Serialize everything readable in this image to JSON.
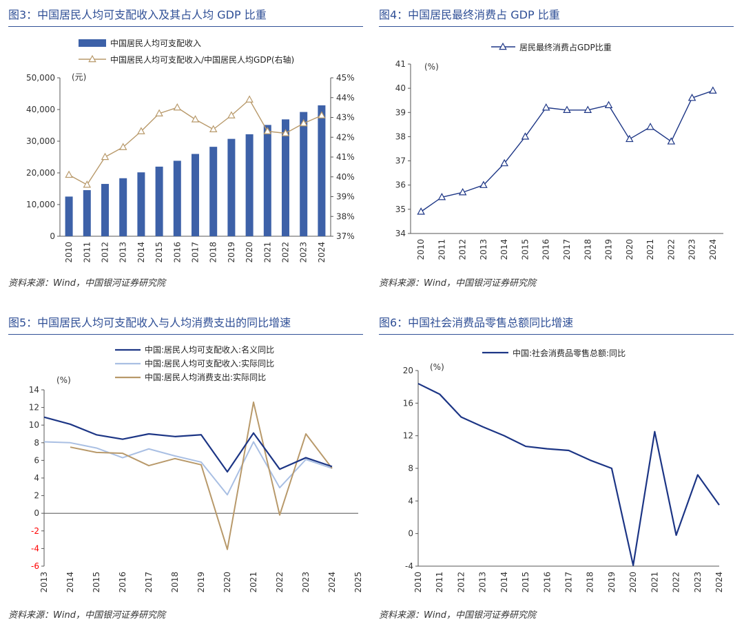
{
  "colors": {
    "title": "#2f4f96",
    "bar": "#3d61a8",
    "gold": "#b8996a",
    "navy": "#1c3585",
    "light_blue": "#a9bfe3",
    "negative_tick": "#ff0000"
  },
  "panels": {
    "fig3": {
      "title": "图3：中国居民人均可支配收入及其占人均 GDP 比重",
      "source": "资料来源：Wind，中国银河证券研究院"
    },
    "fig4": {
      "title": "图4：中国居民最终消费占 GDP 比重",
      "source": "资料来源：Wind，中国银河证券研究院"
    },
    "fig5": {
      "title": "图5：中国居民人均可支配收入与人均消费支出的同比增速",
      "source": "资料来源：Wind，中国银河证券研究院"
    },
    "fig6": {
      "title": "图6：中国社会消费品零售总额同比增速",
      "source": "资料来源：Wind，中国银河证券研究院"
    }
  },
  "chart_data": [
    {
      "id": "fig3",
      "type": "bar",
      "categories": [
        "2010",
        "2011",
        "2012",
        "2013",
        "2014",
        "2015",
        "2016",
        "2017",
        "2018",
        "2019",
        "2020",
        "2021",
        "2022",
        "2023",
        "2024"
      ],
      "series": [
        {
          "name": "中国居民人均可支配收入",
          "type": "bar",
          "axis": "left",
          "values": [
            12520,
            14551,
            16510,
            18311,
            20167,
            21966,
            23821,
            25974,
            28228,
            30733,
            32189,
            35128,
            36883,
            39218,
            41314
          ]
        },
        {
          "name": "中国居民人均可支配收入/中国居民人均GDP(右轴)",
          "type": "line",
          "axis": "right",
          "marker": "triangle",
          "values": [
            40.1,
            39.6,
            41.0,
            41.5,
            42.3,
            43.2,
            43.5,
            42.9,
            42.4,
            43.1,
            43.9,
            42.3,
            42.2,
            42.7,
            43.1
          ]
        }
      ],
      "yleft": {
        "range": [
          0,
          50000
        ],
        "ticks": [
          "0",
          "10,000",
          "20,000",
          "30,000",
          "40,000",
          "50,000"
        ],
        "unit_label": "(元)"
      },
      "yright": {
        "range": [
          37,
          45
        ],
        "ticks": [
          "37%",
          "38%",
          "39%",
          "40%",
          "41%",
          "42%",
          "43%",
          "44%",
          "45%"
        ]
      }
    },
    {
      "id": "fig4",
      "type": "line",
      "categories": [
        "2010",
        "2011",
        "2012",
        "2013",
        "2014",
        "2015",
        "2016",
        "2017",
        "2018",
        "2019",
        "2020",
        "2021",
        "2022",
        "2023",
        "2024"
      ],
      "series": [
        {
          "name": "居民最终消费占GDP比重",
          "marker": "triangle",
          "values": [
            34.9,
            35.5,
            35.7,
            36.0,
            36.9,
            38.0,
            39.2,
            39.1,
            39.1,
            39.3,
            37.9,
            38.4,
            37.8,
            39.6,
            39.9
          ]
        }
      ],
      "yleft": {
        "range": [
          34,
          41
        ],
        "ticks": [
          "34",
          "35",
          "36",
          "37",
          "38",
          "39",
          "40",
          "41"
        ],
        "unit_label": "(%)"
      }
    },
    {
      "id": "fig5",
      "type": "line",
      "categories": [
        "2013",
        "2014",
        "2015",
        "2016",
        "2017",
        "2018",
        "2019",
        "2020",
        "2021",
        "2022",
        "2023",
        "2024",
        "2025"
      ],
      "series": [
        {
          "name": "中国:居民人均可支配收入:名义同比",
          "color_key": "navy",
          "values": [
            10.9,
            10.1,
            8.9,
            8.4,
            9.0,
            8.7,
            8.9,
            4.7,
            9.1,
            5.0,
            6.3,
            5.3,
            null
          ]
        },
        {
          "name": "中国:居民人均可支配收入:实际同比",
          "color_key": "light_blue",
          "values": [
            8.1,
            8.0,
            7.4,
            6.3,
            7.3,
            6.5,
            5.8,
            2.1,
            8.1,
            2.9,
            6.1,
            5.1,
            null
          ]
        },
        {
          "name": "中国:居民人均消费支出:实际同比",
          "color_key": "gold",
          "values": [
            null,
            7.5,
            6.9,
            6.8,
            5.4,
            6.2,
            5.5,
            -4.1,
            12.6,
            -0.2,
            9.0,
            5.1,
            null
          ]
        }
      ],
      "yleft": {
        "range": [
          -6,
          14
        ],
        "ticks": [
          "-6",
          "-4",
          "-2",
          "0",
          "2",
          "4",
          "6",
          "8",
          "10",
          "12",
          "14"
        ],
        "unit_label": "(%)"
      }
    },
    {
      "id": "fig6",
      "type": "line",
      "categories": [
        "2010",
        "2011",
        "2012",
        "2013",
        "2014",
        "2015",
        "2016",
        "2017",
        "2018",
        "2019",
        "2020",
        "2021",
        "2022",
        "2023",
        "2024"
      ],
      "series": [
        {
          "name": "中国:社会消费品零售总额:同比",
          "color_key": "navy",
          "values": [
            18.4,
            17.1,
            14.3,
            13.1,
            12.0,
            10.7,
            10.4,
            10.2,
            9.0,
            8.0,
            -3.9,
            12.5,
            -0.2,
            7.2,
            3.5
          ]
        }
      ],
      "yleft": {
        "range": [
          -4,
          20
        ],
        "ticks": [
          "-4",
          "0",
          "4",
          "8",
          "12",
          "16",
          "20"
        ],
        "unit_label": "(%)"
      }
    }
  ]
}
